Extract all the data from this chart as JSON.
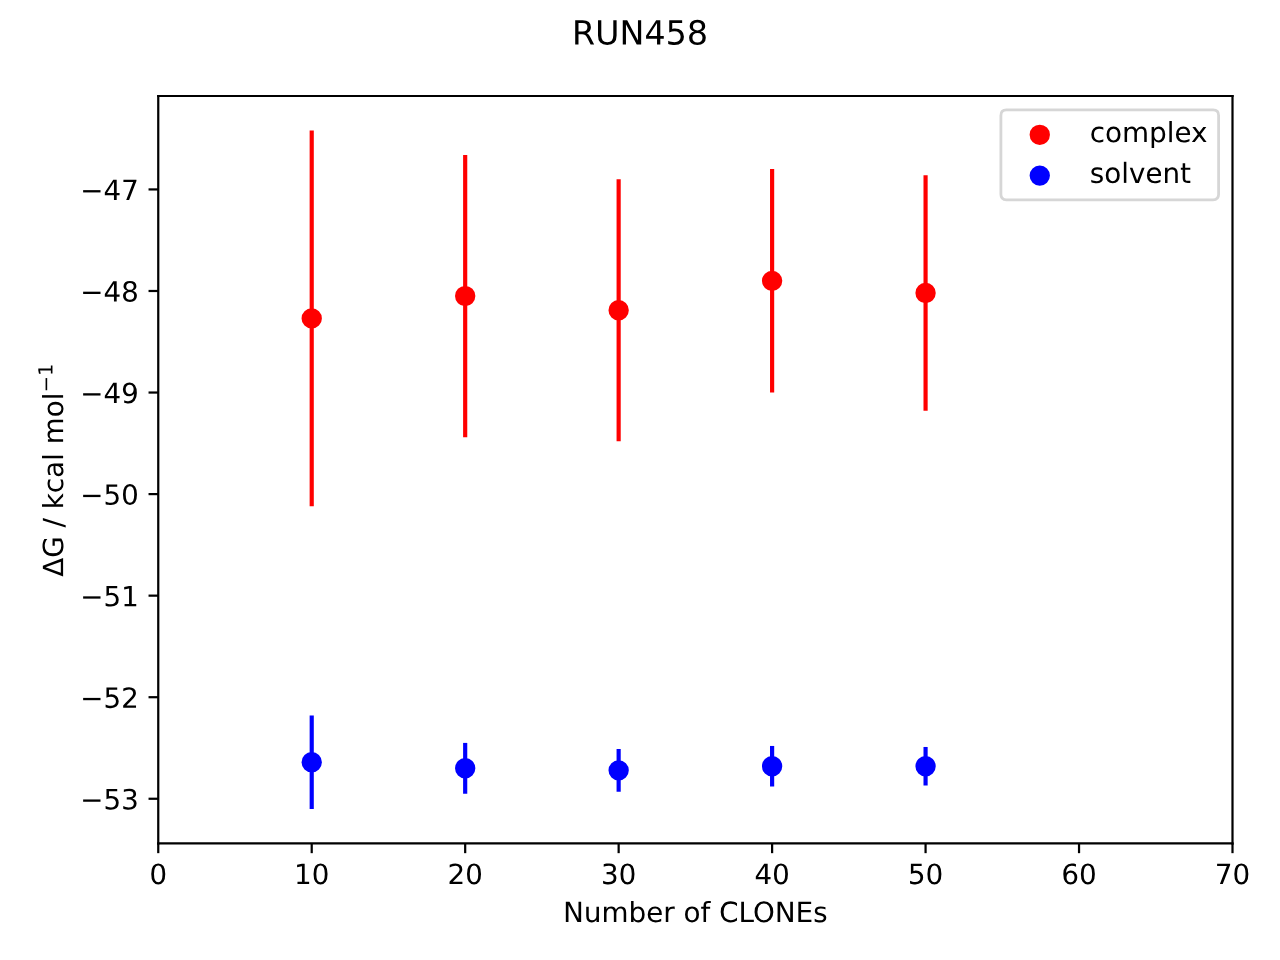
{
  "chart_data": {
    "type": "scatter",
    "title": "RUN458",
    "xlabel": "Number of CLONEs",
    "ylabel": "ΔG / kcal mol$^{−1}$",
    "x": [
      10,
      20,
      30,
      40,
      50
    ],
    "series": [
      {
        "name": "complex",
        "color": "#ff0000",
        "values": [
          -48.27,
          -48.05,
          -48.19,
          -47.9,
          -48.02
        ],
        "errors": [
          1.85,
          1.39,
          1.29,
          1.1,
          1.16
        ]
      },
      {
        "name": "solvent",
        "color": "#0000ff",
        "values": [
          -52.64,
          -52.7,
          -52.72,
          -52.68,
          -52.68
        ],
        "errors": [
          0.46,
          0.25,
          0.21,
          0.2,
          0.19
        ]
      }
    ],
    "xlim": [
      0,
      70
    ],
    "ylim": [
      -53.44,
      -46.08
    ],
    "xticks": [
      0,
      10,
      20,
      30,
      40,
      50,
      60,
      70
    ],
    "yticks": [
      -53,
      -52,
      -51,
      -50,
      -49,
      -48,
      -47
    ],
    "legend": "top right",
    "marker": "circle"
  }
}
